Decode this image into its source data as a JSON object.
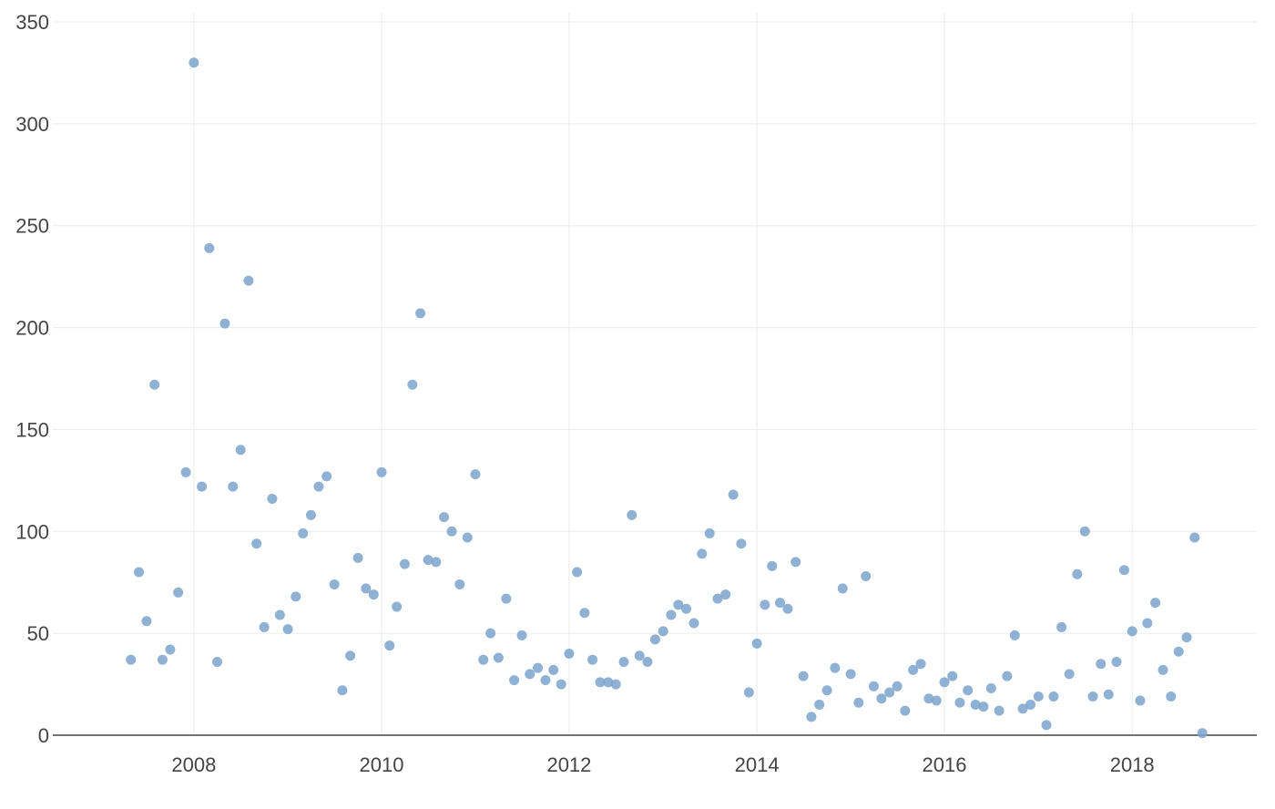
{
  "chart_data": {
    "type": "scatter",
    "title": "",
    "xlabel": "",
    "ylabel": "",
    "xlim": [
      "2006-07-01",
      "2019-05-01"
    ],
    "ylim": [
      0,
      350
    ],
    "grid": true,
    "marker_color": "#7ba3cc",
    "x_ticks": [
      "2008",
      "2010",
      "2012",
      "2014",
      "2016",
      "2018"
    ],
    "x_tick_dates": [
      "2008-01-01",
      "2010-01-01",
      "2012-01-01",
      "2014-01-01",
      "2016-01-01",
      "2018-01-01"
    ],
    "y_ticks": [
      "0",
      "50",
      "100",
      "150",
      "200",
      "250",
      "300",
      "350"
    ],
    "y_tick_values": [
      0,
      50,
      100,
      150,
      200,
      250,
      300,
      350
    ],
    "series": [
      {
        "x": [
          "2007-05-01",
          "2007-06-01",
          "2007-07-01",
          "2007-08-01",
          "2007-09-01",
          "2007-10-01",
          "2007-11-01",
          "2007-12-01",
          "2008-01-01",
          "2008-02-01",
          "2008-03-01",
          "2008-04-01",
          "2008-05-01",
          "2008-06-01",
          "2008-07-01",
          "2008-08-01",
          "2008-09-01",
          "2008-10-01",
          "2008-11-01",
          "2008-12-01",
          "2009-01-01",
          "2009-02-01",
          "2009-03-01",
          "2009-04-01",
          "2009-05-01",
          "2009-06-01",
          "2009-07-01",
          "2009-08-01",
          "2009-09-01",
          "2009-10-01",
          "2009-11-01",
          "2009-12-01",
          "2010-01-01",
          "2010-02-01",
          "2010-03-01",
          "2010-04-01",
          "2010-05-01",
          "2010-06-01",
          "2010-07-01",
          "2010-08-01",
          "2010-09-01",
          "2010-10-01",
          "2010-11-01",
          "2010-12-01",
          "2011-01-01",
          "2011-02-01",
          "2011-03-01",
          "2011-04-01",
          "2011-05-01",
          "2011-06-01",
          "2011-07-01",
          "2011-08-01",
          "2011-09-01",
          "2011-10-01",
          "2011-11-01",
          "2011-12-01",
          "2012-01-01",
          "2012-02-01",
          "2012-03-01",
          "2012-04-01",
          "2012-05-01",
          "2012-06-01",
          "2012-07-01",
          "2012-08-01",
          "2012-09-01",
          "2012-10-01",
          "2012-11-01",
          "2012-12-01",
          "2013-01-01",
          "2013-02-01",
          "2013-03-01",
          "2013-04-01",
          "2013-05-01",
          "2013-06-01",
          "2013-07-01",
          "2013-08-01",
          "2013-09-01",
          "2013-10-01",
          "2013-11-01",
          "2013-12-01",
          "2014-01-01",
          "2014-02-01",
          "2014-03-01",
          "2014-04-01",
          "2014-05-01",
          "2014-06-01",
          "2014-07-01",
          "2014-08-01",
          "2014-09-01",
          "2014-10-01",
          "2014-11-01",
          "2014-12-01",
          "2015-01-01",
          "2015-02-01",
          "2015-03-01",
          "2015-04-01",
          "2015-05-01",
          "2015-06-01",
          "2015-07-01",
          "2015-08-01",
          "2015-09-01",
          "2015-10-01",
          "2015-11-01",
          "2015-12-01",
          "2016-01-01",
          "2016-02-01",
          "2016-03-01",
          "2016-04-01",
          "2016-05-01",
          "2016-06-01",
          "2016-07-01",
          "2016-08-01",
          "2016-09-01",
          "2016-10-01",
          "2016-11-01",
          "2016-12-01",
          "2017-01-01",
          "2017-02-01",
          "2017-03-01",
          "2017-04-01",
          "2017-05-01",
          "2017-06-01",
          "2017-07-01",
          "2017-08-01",
          "2017-09-01",
          "2017-10-01",
          "2017-11-01",
          "2017-12-01",
          "2018-01-01",
          "2018-02-01",
          "2018-03-01",
          "2018-04-01",
          "2018-05-01",
          "2018-06-01",
          "2018-07-01",
          "2018-08-01",
          "2018-09-01",
          "2018-10-01"
        ],
        "y": [
          37,
          80,
          56,
          172,
          37,
          42,
          70,
          129,
          330,
          122,
          239,
          36,
          202,
          122,
          140,
          223,
          94,
          53,
          116,
          59,
          52,
          68,
          99,
          108,
          122,
          127,
          74,
          22,
          39,
          87,
          72,
          69,
          129,
          44,
          63,
          84,
          172,
          207,
          86,
          85,
          107,
          100,
          74,
          97,
          128,
          37,
          50,
          38,
          67,
          27,
          49,
          30,
          33,
          27,
          32,
          25,
          40,
          80,
          60,
          37,
          26,
          26,
          25,
          36,
          108,
          39,
          36,
          47,
          51,
          59,
          64,
          62,
          55,
          89,
          99,
          67,
          69,
          118,
          94,
          21,
          45,
          64,
          83,
          65,
          62,
          85,
          29,
          9,
          15,
          22,
          33,
          72,
          30,
          16,
          78,
          24,
          18,
          21,
          24,
          12,
          32,
          35,
          18,
          17,
          26,
          29,
          16,
          22,
          15,
          14,
          23,
          12,
          29,
          49,
          13,
          15,
          19,
          5,
          19,
          53,
          30,
          79,
          100,
          19,
          35,
          20,
          36,
          81,
          51,
          17,
          55,
          65,
          32,
          19,
          41,
          48,
          97,
          1
        ]
      }
    ]
  }
}
